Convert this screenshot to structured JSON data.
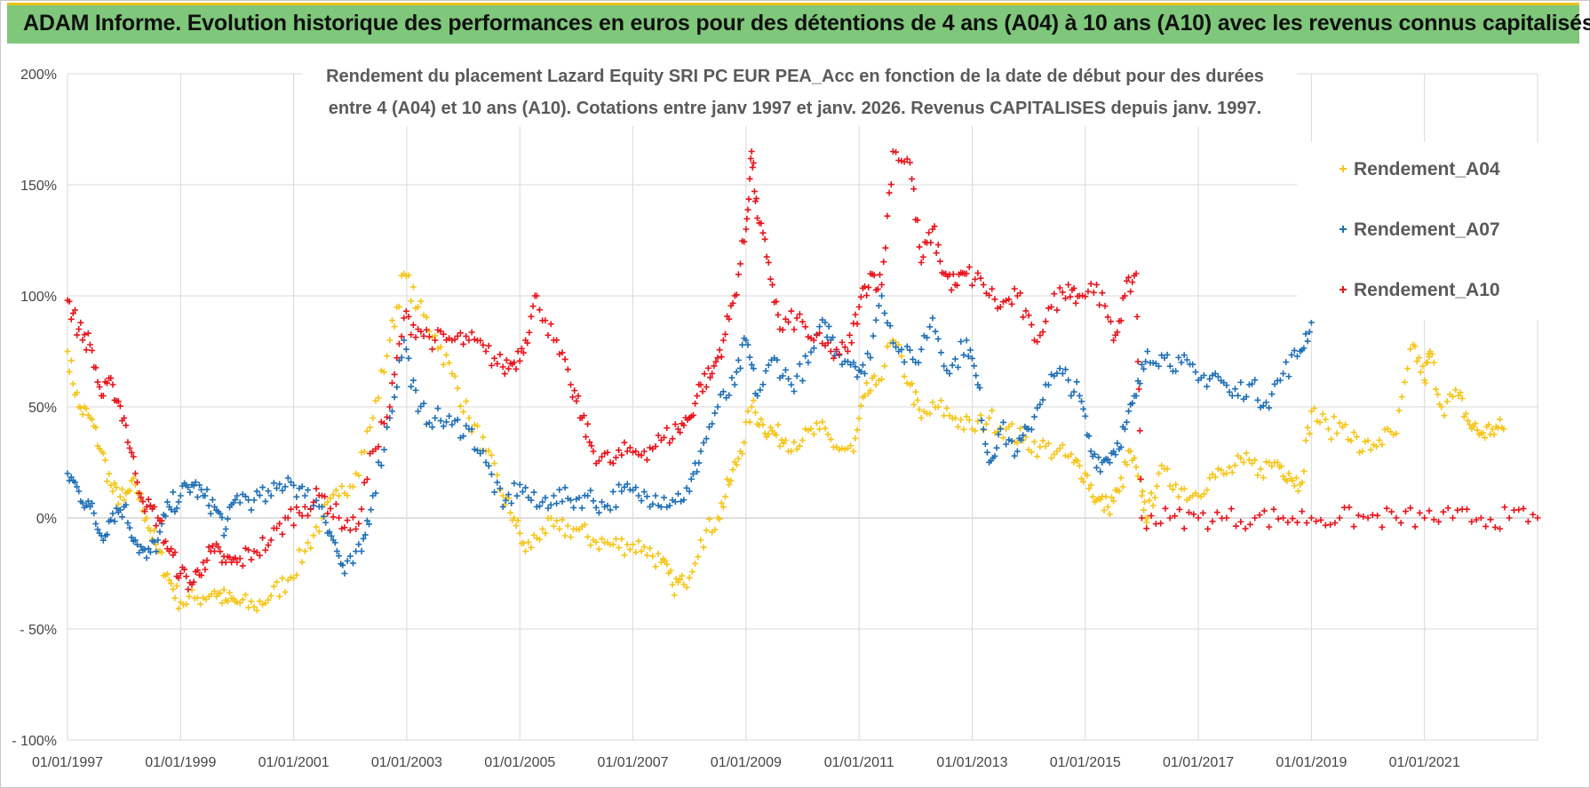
{
  "header": {
    "banner_title": "ADAM Informe. Evolution historique des performances en euros pour des détentions de 4 ans (A04) à 10 ans (A10) avec les revenus connus capitalisés"
  },
  "colors": {
    "banner_bg": "#7fc77a",
    "banner_accent": "#e8c21b",
    "A04": "#f5c518",
    "A07": "#1f6fb5",
    "A10": "#e8141b",
    "grid": "#d9d9d9"
  },
  "chart_data": {
    "type": "scatter",
    "title_lines": [
      "Rendement du placement Lazard Equity SRI PC EUR PEA_Acc en fonction de la date de début pour des durées",
      "entre 4 (A04) et 10 ans (A10). Cotations entre janv 1997 et janv. 2026. Revenus CAPITALISES depuis janv. 1997."
    ],
    "xlabel": "",
    "ylabel": "",
    "x_range": [
      "1997-01-01",
      "2023-01-01"
    ],
    "ylim": [
      -100,
      200
    ],
    "y_ticks": [
      {
        "value": 200,
        "label": "200%"
      },
      {
        "value": 150,
        "label": "150%"
      },
      {
        "value": 100,
        "label": "100%"
      },
      {
        "value": 50,
        "label": "50%"
      },
      {
        "value": 0,
        "label": "0%"
      },
      {
        "value": -50,
        "label": "- 50%"
      },
      {
        "value": -100,
        "label": "- 100%"
      }
    ],
    "x_ticks": [
      {
        "year": 1997,
        "label": "01/01/1997"
      },
      {
        "year": 1999,
        "label": "01/01/1999"
      },
      {
        "year": 2001,
        "label": "01/01/2001"
      },
      {
        "year": 2003,
        "label": "01/01/2003"
      },
      {
        "year": 2005,
        "label": "01/01/2005"
      },
      {
        "year": 2007,
        "label": "01/01/2007"
      },
      {
        "year": 2009,
        "label": "01/01/2009"
      },
      {
        "year": 2011,
        "label": "01/01/2011"
      },
      {
        "year": 2013,
        "label": "01/01/2013"
      },
      {
        "year": 2015,
        "label": "01/01/2015"
      },
      {
        "year": 2017,
        "label": "01/01/2017"
      },
      {
        "year": 2019,
        "label": "01/01/2019"
      },
      {
        "year": 2021,
        "label": "01/01/2021"
      }
    ],
    "grid": true,
    "legend_position": "top-right",
    "marker": "+",
    "series": [
      {
        "name": "Rendement_A04",
        "color": "#f5c518",
        "points": [
          [
            1997.0,
            75
          ],
          [
            1997.2,
            50
          ],
          [
            1997.4,
            45
          ],
          [
            1997.6,
            30
          ],
          [
            1997.8,
            12
          ],
          [
            1998.0,
            8
          ],
          [
            1998.2,
            15
          ],
          [
            1998.4,
            0
          ],
          [
            1998.6,
            -15
          ],
          [
            1998.8,
            -28
          ],
          [
            1999.0,
            -38
          ],
          [
            1999.3,
            -36
          ],
          [
            1999.6,
            -33
          ],
          [
            1999.8,
            -37
          ],
          [
            2000.0,
            -38
          ],
          [
            2000.3,
            -40
          ],
          [
            2000.6,
            -35
          ],
          [
            2000.9,
            -28
          ],
          [
            2001.2,
            -15
          ],
          [
            2001.5,
            0
          ],
          [
            2001.8,
            10
          ],
          [
            2002.1,
            20
          ],
          [
            2002.4,
            45
          ],
          [
            2002.7,
            80
          ],
          [
            2002.95,
            110
          ],
          [
            2003.2,
            95
          ],
          [
            2003.5,
            82
          ],
          [
            2003.8,
            65
          ],
          [
            2004.1,
            45
          ],
          [
            2004.4,
            30
          ],
          [
            2004.7,
            10
          ],
          [
            2004.9,
            0
          ],
          [
            2005.1,
            -15
          ],
          [
            2005.4,
            -5
          ],
          [
            2005.7,
            -5
          ],
          [
            2006.0,
            -5
          ],
          [
            2006.3,
            -10
          ],
          [
            2006.6,
            -12
          ],
          [
            2006.9,
            -12
          ],
          [
            2007.2,
            -13
          ],
          [
            2007.5,
            -20
          ],
          [
            2007.7,
            -30
          ],
          [
            2007.9,
            -30
          ],
          [
            2008.2,
            -10
          ],
          [
            2008.5,
            0
          ],
          [
            2008.7,
            15
          ],
          [
            2008.9,
            30
          ],
          [
            2009.1,
            50
          ],
          [
            2009.3,
            42
          ],
          [
            2009.5,
            38
          ],
          [
            2009.7,
            35
          ],
          [
            2010.0,
            35
          ],
          [
            2010.3,
            40
          ],
          [
            2010.6,
            32
          ],
          [
            2010.9,
            30
          ],
          [
            2011.1,
            55
          ],
          [
            2011.3,
            60
          ],
          [
            2011.6,
            80
          ],
          [
            2011.9,
            60
          ],
          [
            2012.1,
            45
          ],
          [
            2012.4,
            50
          ],
          [
            2012.7,
            45
          ],
          [
            2013.0,
            40
          ],
          [
            2013.3,
            45
          ],
          [
            2013.6,
            40
          ],
          [
            2013.9,
            35
          ],
          [
            2014.2,
            32
          ],
          [
            2014.5,
            30
          ],
          [
            2014.8,
            25
          ],
          [
            2015.0,
            20
          ],
          [
            2015.2,
            8
          ],
          [
            2015.4,
            5
          ],
          [
            2015.6,
            12
          ],
          [
            2015.8,
            30
          ],
          [
            2016.0,
            10
          ],
          [
            2016.1,
            0
          ],
          [
            2016.3,
            20
          ],
          [
            2016.6,
            15
          ],
          [
            2016.9,
            10
          ],
          [
            2017.2,
            18
          ],
          [
            2017.5,
            20
          ],
          [
            2017.8,
            25
          ],
          [
            2018.1,
            22
          ],
          [
            2018.4,
            25
          ],
          [
            2018.6,
            20
          ],
          [
            2018.8,
            15
          ],
          [
            2019.0,
            48
          ],
          [
            2019.3,
            40
          ],
          [
            2019.6,
            42
          ],
          [
            2019.9,
            30
          ],
          [
            2020.2,
            35
          ],
          [
            2020.5,
            38
          ],
          [
            2020.8,
            78
          ],
          [
            2021.0,
            62
          ],
          [
            2021.1,
            75
          ],
          [
            2021.3,
            50
          ],
          [
            2021.6,
            55
          ],
          [
            2021.8,
            42
          ],
          [
            2022.0,
            38
          ],
          [
            2022.2,
            40
          ],
          [
            2022.4,
            40
          ]
        ]
      },
      {
        "name": "Rendement_A07",
        "color": "#1f6fb5",
        "points": [
          [
            1997.0,
            20
          ],
          [
            1997.2,
            12
          ],
          [
            1997.4,
            5
          ],
          [
            1997.6,
            -8
          ],
          [
            1997.8,
            2
          ],
          [
            1998.0,
            5
          ],
          [
            1998.2,
            -10
          ],
          [
            1998.4,
            -18
          ],
          [
            1998.6,
            -10
          ],
          [
            1998.8,
            5
          ],
          [
            1999.0,
            10
          ],
          [
            1999.2,
            15
          ],
          [
            1999.4,
            10
          ],
          [
            1999.6,
            5
          ],
          [
            1999.8,
            -5
          ],
          [
            2000.0,
            10
          ],
          [
            2000.3,
            8
          ],
          [
            2000.6,
            10
          ],
          [
            2000.9,
            18
          ],
          [
            2001.2,
            10
          ],
          [
            2001.5,
            5
          ],
          [
            2001.7,
            -10
          ],
          [
            2001.9,
            -25
          ],
          [
            2002.2,
            -15
          ],
          [
            2002.4,
            10
          ],
          [
            2002.7,
            45
          ],
          [
            2002.95,
            80
          ],
          [
            2003.2,
            48
          ],
          [
            2003.5,
            45
          ],
          [
            2003.8,
            42
          ],
          [
            2004.1,
            40
          ],
          [
            2004.4,
            25
          ],
          [
            2004.7,
            5
          ],
          [
            2005.0,
            15
          ],
          [
            2005.3,
            5
          ],
          [
            2005.6,
            10
          ],
          [
            2005.9,
            8
          ],
          [
            2006.2,
            10
          ],
          [
            2006.5,
            5
          ],
          [
            2006.8,
            12
          ],
          [
            2007.1,
            10
          ],
          [
            2007.4,
            10
          ],
          [
            2007.7,
            8
          ],
          [
            2008.0,
            12
          ],
          [
            2008.2,
            30
          ],
          [
            2008.5,
            50
          ],
          [
            2008.8,
            60
          ],
          [
            2009.0,
            80
          ],
          [
            2009.2,
            55
          ],
          [
            2009.5,
            72
          ],
          [
            2009.8,
            60
          ],
          [
            2010.1,
            70
          ],
          [
            2010.4,
            88
          ],
          [
            2010.6,
            75
          ],
          [
            2010.9,
            70
          ],
          [
            2011.1,
            65
          ],
          [
            2011.4,
            100
          ],
          [
            2011.7,
            75
          ],
          [
            2012.0,
            70
          ],
          [
            2012.3,
            90
          ],
          [
            2012.6,
            65
          ],
          [
            2012.9,
            80
          ],
          [
            2013.1,
            60
          ],
          [
            2013.3,
            25
          ],
          [
            2013.5,
            40
          ],
          [
            2013.8,
            30
          ],
          [
            2014.0,
            40
          ],
          [
            2014.3,
            60
          ],
          [
            2014.6,
            65
          ],
          [
            2014.9,
            55
          ],
          [
            2015.1,
            30
          ],
          [
            2015.3,
            25
          ],
          [
            2015.5,
            30
          ],
          [
            2015.7,
            40
          ],
          [
            2015.9,
            55
          ],
          [
            2016.1,
            75
          ],
          [
            2016.4,
            72
          ],
          [
            2016.7,
            70
          ],
          [
            2017.0,
            62
          ],
          [
            2017.3,
            65
          ],
          [
            2017.6,
            55
          ],
          [
            2017.9,
            60
          ],
          [
            2018.2,
            52
          ],
          [
            2018.5,
            65
          ],
          [
            2018.8,
            75
          ],
          [
            2019.0,
            88
          ]
        ]
      },
      {
        "name": "Rendement_A10",
        "color": "#e8141b",
        "points": [
          [
            1997.0,
            98
          ],
          [
            1997.2,
            85
          ],
          [
            1997.4,
            78
          ],
          [
            1997.6,
            55
          ],
          [
            1997.8,
            60
          ],
          [
            1998.0,
            45
          ],
          [
            1998.2,
            20
          ],
          [
            1998.4,
            5
          ],
          [
            1998.6,
            0
          ],
          [
            1998.8,
            -15
          ],
          [
            1999.0,
            -25
          ],
          [
            1999.2,
            -30
          ],
          [
            1999.4,
            -20
          ],
          [
            1999.6,
            -15
          ],
          [
            1999.8,
            -20
          ],
          [
            2000.0,
            -20
          ],
          [
            2000.3,
            -15
          ],
          [
            2000.6,
            -10
          ],
          [
            2000.9,
            0
          ],
          [
            2001.2,
            5
          ],
          [
            2001.5,
            10
          ],
          [
            2001.8,
            0
          ],
          [
            2002.1,
            -5
          ],
          [
            2002.4,
            30
          ],
          [
            2002.7,
            50
          ],
          [
            2002.95,
            90
          ],
          [
            2003.2,
            85
          ],
          [
            2003.5,
            80
          ],
          [
            2003.8,
            80
          ],
          [
            2004.1,
            80
          ],
          [
            2004.4,
            75
          ],
          [
            2004.7,
            68
          ],
          [
            2004.9,
            70
          ],
          [
            2005.1,
            80
          ],
          [
            2005.3,
            100
          ],
          [
            2005.6,
            80
          ],
          [
            2005.9,
            60
          ],
          [
            2006.1,
            45
          ],
          [
            2006.3,
            30
          ],
          [
            2006.6,
            25
          ],
          [
            2006.9,
            30
          ],
          [
            2007.2,
            30
          ],
          [
            2007.5,
            35
          ],
          [
            2007.8,
            40
          ],
          [
            2008.0,
            45
          ],
          [
            2008.2,
            60
          ],
          [
            2008.4,
            65
          ],
          [
            2008.6,
            80
          ],
          [
            2008.8,
            100
          ],
          [
            2009.0,
            130
          ],
          [
            2009.1,
            165
          ],
          [
            2009.2,
            135
          ],
          [
            2009.4,
            115
          ],
          [
            2009.6,
            85
          ],
          [
            2009.9,
            90
          ],
          [
            2010.2,
            80
          ],
          [
            2010.5,
            75
          ],
          [
            2010.8,
            75
          ],
          [
            2011.0,
            95
          ],
          [
            2011.2,
            110
          ],
          [
            2011.4,
            105
          ],
          [
            2011.6,
            165
          ],
          [
            2011.9,
            160
          ],
          [
            2012.1,
            115
          ],
          [
            2012.3,
            130
          ],
          [
            2012.5,
            110
          ],
          [
            2012.7,
            105
          ],
          [
            2012.9,
            110
          ],
          [
            2013.2,
            105
          ],
          [
            2013.5,
            95
          ],
          [
            2013.8,
            100
          ],
          [
            2014.1,
            80
          ],
          [
            2014.4,
            95
          ],
          [
            2014.7,
            105
          ],
          [
            2014.9,
            100
          ],
          [
            2015.2,
            105
          ],
          [
            2015.5,
            80
          ],
          [
            2015.7,
            100
          ],
          [
            2015.9,
            110
          ],
          [
            2016.0,
            0
          ],
          [
            2016.5,
            0
          ],
          [
            2017.0,
            0
          ],
          [
            2017.5,
            0
          ],
          [
            2018.0,
            0
          ],
          [
            2018.5,
            0
          ],
          [
            2019.0,
            0
          ],
          [
            2019.5,
            0
          ],
          [
            2020.0,
            0
          ],
          [
            2020.5,
            0
          ],
          [
            2021.0,
            0
          ],
          [
            2021.5,
            0
          ],
          [
            2022.0,
            0
          ],
          [
            2022.5,
            0
          ],
          [
            2023.0,
            0
          ]
        ]
      }
    ]
  }
}
